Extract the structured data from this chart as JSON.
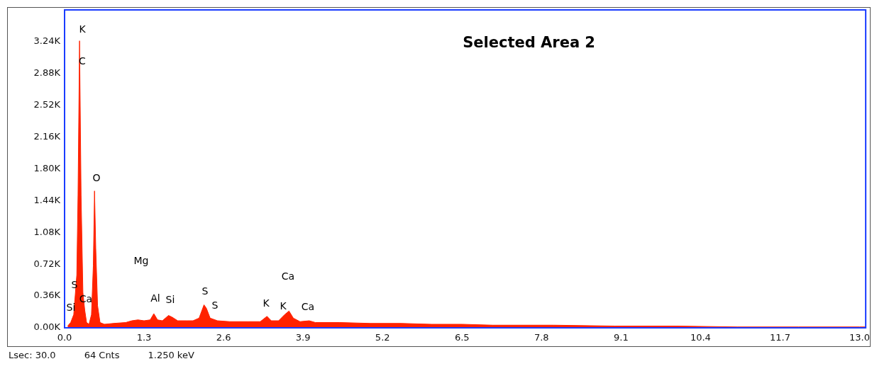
{
  "chart_data": {
    "type": "area",
    "title": "Selected Area 2",
    "color": "#ff2200",
    "x": [
      0.05,
      0.1,
      0.15,
      0.2,
      0.22,
      0.245,
      0.27,
      0.3,
      0.33,
      0.36,
      0.4,
      0.44,
      0.47,
      0.49,
      0.51,
      0.54,
      0.58,
      0.65,
      0.8,
      1.0,
      1.1,
      1.2,
      1.3,
      1.4,
      1.46,
      1.52,
      1.6,
      1.7,
      1.76,
      1.85,
      2.0,
      2.1,
      2.2,
      2.28,
      2.32,
      2.38,
      2.5,
      2.7,
      3.0,
      3.2,
      3.31,
      3.38,
      3.5,
      3.6,
      3.67,
      3.74,
      3.85,
      4.0,
      4.1,
      4.5,
      5.0,
      5.5,
      6.0,
      6.5,
      7.0,
      8.0,
      9.0,
      10.0,
      11.0,
      12.0,
      13.0,
      13.1
    ],
    "values": [
      20,
      60,
      150,
      600,
      1500,
      3250,
      1500,
      400,
      200,
      60,
      40,
      150,
      700,
      1550,
      900,
      250,
      60,
      40,
      50,
      60,
      80,
      90,
      80,
      90,
      160,
      90,
      80,
      140,
      120,
      80,
      80,
      80,
      110,
      260,
      220,
      110,
      80,
      70,
      70,
      70,
      130,
      80,
      80,
      150,
      190,
      110,
      70,
      80,
      60,
      60,
      50,
      50,
      40,
      40,
      30,
      30,
      20,
      20,
      10,
      10,
      10,
      10
    ],
    "xlim": [
      0,
      13.1
    ],
    "xticks": [
      {
        "value": 0,
        "label": "0.0"
      },
      1.3,
      2.6,
      3.9,
      5.2,
      6.5,
      7.8,
      9.1,
      10.4,
      11.7,
      {
        "value": 13,
        "label": "13.0"
      }
    ],
    "ylim": [
      0,
      3600
    ],
    "yticks": [
      {
        "value": 0,
        "label": "0.00K"
      },
      {
        "value": 360,
        "label": "0.36K"
      },
      {
        "value": 720,
        "label": "0.72K"
      },
      {
        "value": 1080,
        "label": "1.08K"
      },
      {
        "value": 1440,
        "label": "1.44K"
      },
      {
        "value": 1800,
        "label": "1.80K"
      },
      {
        "value": 2160,
        "label": "2.16K"
      },
      {
        "value": 2520,
        "label": "2.52K"
      },
      {
        "value": 2880,
        "label": "2.88K"
      },
      {
        "value": 3240,
        "label": "3.24K"
      }
    ],
    "grid": false,
    "legend": false,
    "marker": "none",
    "annotations": [
      "K",
      "C",
      "O",
      "Mg",
      "S",
      "Si",
      "Ca",
      "Al",
      "Si",
      "S",
      "S",
      "K",
      "K",
      "Ca",
      "Ca",
      "Lsec: 30.0",
      "64 Cnts",
      "1.250 keV"
    ]
  }
}
